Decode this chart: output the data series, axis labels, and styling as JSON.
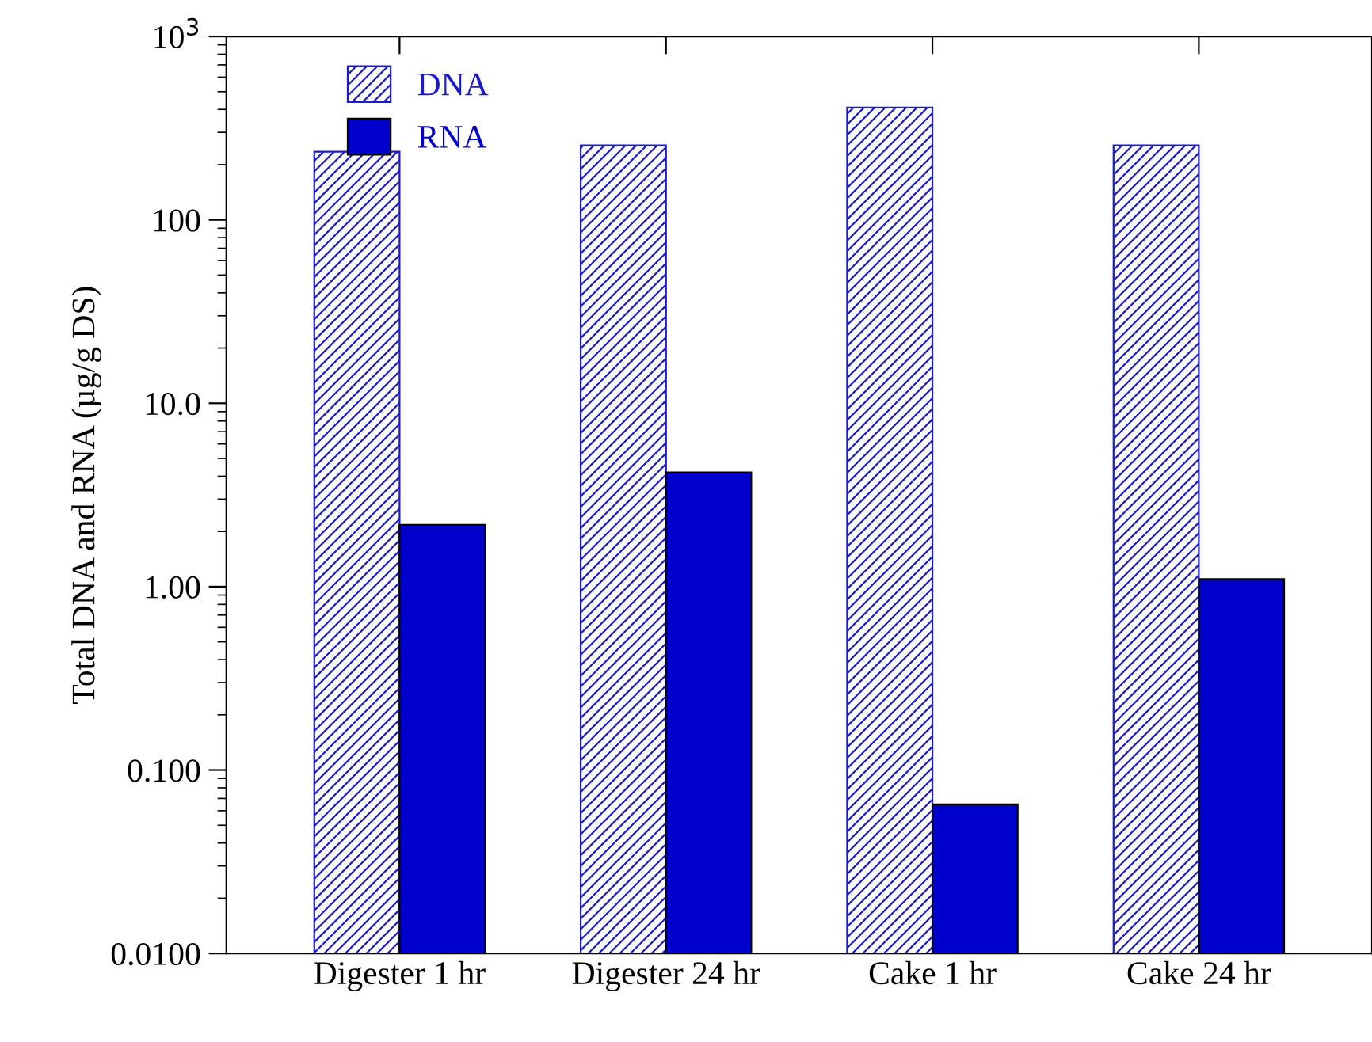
{
  "chart_data": {
    "type": "bar",
    "ylabel": "Total DNA and RNA (µg/g DS)",
    "categories": [
      "Digester 1 hr",
      "Digester 24 hr",
      "Cake 1 hr",
      "Cake 24 hr"
    ],
    "series": [
      {
        "name": "DNA",
        "color": "#1a1acc",
        "values": [
          235,
          255,
          410,
          255
        ]
      },
      {
        "name": "RNA",
        "color": "#0000cc",
        "values": [
          2.17,
          4.2,
          0.065,
          1.1
        ]
      }
    ],
    "log": "y",
    "ylim": [
      0.01,
      1000
    ],
    "yticks": [
      {
        "value": 0.01,
        "label": "0.0100"
      },
      {
        "value": 0.1,
        "label": "0.100"
      },
      {
        "value": 1,
        "label": "1.00"
      },
      {
        "value": 10,
        "label": "10.0"
      },
      100,
      {
        "value": 1000,
        "label": "10$^{3}$"
      }
    ],
    "legend": "top left",
    "grid": false
  }
}
